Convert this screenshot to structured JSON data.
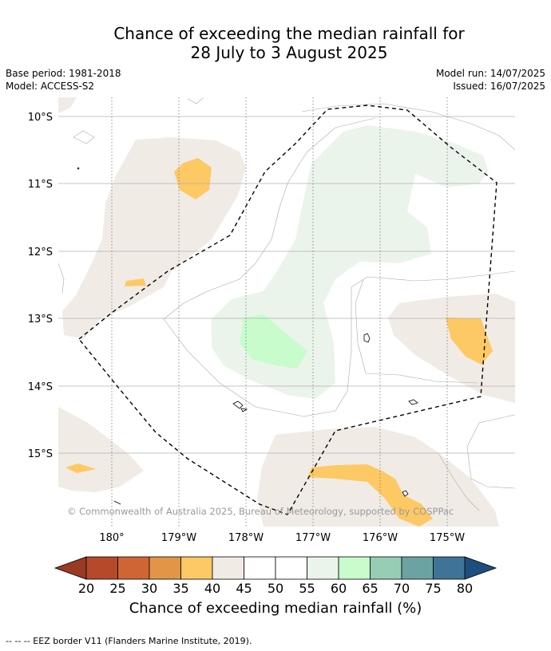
{
  "title": {
    "line1": "Chance of exceeding the median rainfall for",
    "line2": "28 July to 3 August 2025"
  },
  "meta": {
    "base_period": "Base period: 1981-2018",
    "model": "Model: ACCESS-S2",
    "model_run": "Model run: 14/07/2025",
    "issued": "Issued: 16/07/2025"
  },
  "map": {
    "lat_labels": [
      "10°S",
      "11°S",
      "12°S",
      "13°S",
      "14°S",
      "15°S"
    ],
    "lon_labels": [
      "180°",
      "179°W",
      "178°W",
      "177°W",
      "176°W",
      "175°W"
    ],
    "copyright": "© Commonwealth of Australia 2025, Bureau of Meteorology, supported by COSPPac"
  },
  "colorbar": {
    "ticks": [
      "20",
      "25",
      "30",
      "35",
      "40",
      "45",
      "50",
      "55",
      "60",
      "65",
      "70",
      "75",
      "80"
    ],
    "colors": [
      "#b5492a",
      "#cf6534",
      "#e29547",
      "#fdc964",
      "#f1ebe6",
      "#ffffff",
      "#ffffff",
      "#ebf4ea",
      "#c8fccc",
      "#98cdb5",
      "#6aa3a1",
      "#3e7497"
    ],
    "low_color": "#9a3a24",
    "high_color": "#1c4f7e",
    "label": "Chance of exceeding median rainfall (%)"
  },
  "colors": {
    "eez_line": "#000000",
    "contour": "#aaaaaa"
  },
  "footer": "--  --  -- EEZ border V11 (Flanders Marine Institute, 2019)."
}
